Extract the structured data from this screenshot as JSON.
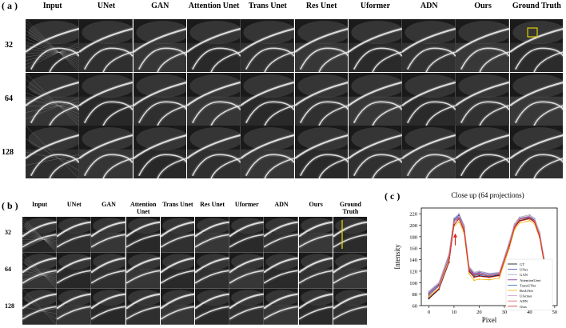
{
  "panel_a": {
    "label": "( a )",
    "columns": [
      "Input",
      "UNet",
      "GAN",
      "Attention Unet",
      "Trans Unet",
      "Res Unet",
      "Uformer",
      "ADN",
      "Ours",
      "Ground Truth"
    ],
    "rows": [
      "32",
      "64",
      "128"
    ],
    "roi_color": "#e0d000"
  },
  "panel_b": {
    "label": "( b )",
    "columns": [
      "Input",
      "UNet",
      "GAN",
      "Attention Unet",
      "Trans Unet",
      "Res Unet",
      "Uformer",
      "ADN",
      "Ours",
      "Ground Truth"
    ],
    "rows": [
      "32",
      "64",
      "128"
    ],
    "line_color": "#e0d000"
  },
  "panel_c": {
    "label": "( c )"
  },
  "chart_data": {
    "type": "line",
    "title": "Close up (64 projections)",
    "xlabel": "Pixel",
    "ylabel": "Intensity",
    "xlim": [
      -3,
      51
    ],
    "ylim": [
      60,
      230
    ],
    "xticks": [
      0,
      10,
      20,
      30,
      40,
      50
    ],
    "yticks": [
      60,
      80,
      100,
      120,
      140,
      160,
      180,
      200,
      220
    ],
    "legend_position": "right",
    "x": [
      0,
      4,
      8,
      10,
      12,
      14,
      16,
      18,
      20,
      24,
      28,
      32,
      34,
      36,
      40,
      42,
      44,
      46,
      48
    ],
    "series": [
      {
        "name": "GT",
        "color": "#000000",
        "values": [
          72,
          88,
          135,
          200,
          212,
          190,
          120,
          110,
          112,
          110,
          113,
          165,
          196,
          208,
          212,
          206,
          180,
          130,
          112
        ]
      },
      {
        "name": "UNet",
        "color": "#3b4cc0",
        "values": [
          82,
          98,
          148,
          210,
          218,
          198,
          125,
          115,
          118,
          114,
          116,
          170,
          200,
          212,
          216,
          210,
          186,
          136,
          116
        ]
      },
      {
        "name": "GAN",
        "color": "#9aa6b8",
        "values": [
          85,
          100,
          150,
          212,
          220,
          200,
          128,
          118,
          120,
          116,
          118,
          172,
          202,
          214,
          218,
          212,
          188,
          138,
          118
        ]
      },
      {
        "name": "AttentionUnet",
        "color": "#7b2d8e",
        "values": [
          80,
          96,
          145,
          208,
          216,
          196,
          124,
          114,
          116,
          112,
          115,
          168,
          199,
          211,
          215,
          209,
          185,
          135,
          115
        ]
      },
      {
        "name": "TransUNet",
        "color": "#1f6fb4",
        "values": [
          78,
          94,
          142,
          205,
          214,
          194,
          122,
          112,
          114,
          111,
          114,
          167,
          198,
          210,
          214,
          208,
          184,
          134,
          114
        ]
      },
      {
        "name": "ResUNet",
        "color": "#f0b400",
        "values": [
          76,
          90,
          138,
          198,
          206,
          186,
          115,
          104,
          106,
          105,
          108,
          160,
          192,
          204,
          208,
          202,
          178,
          128,
          108
        ]
      },
      {
        "name": "Uformer",
        "color": "#c8a0c8",
        "values": [
          84,
          99,
          146,
          207,
          215,
          197,
          126,
          117,
          119,
          115,
          117,
          169,
          200,
          212,
          216,
          210,
          186,
          137,
          117
        ]
      },
      {
        "name": "ADN",
        "color": "#e85a5a",
        "values": [
          80,
          95,
          144,
          206,
          212,
          195,
          123,
          113,
          115,
          112,
          115,
          166,
          198,
          210,
          213,
          207,
          183,
          134,
          114
        ]
      },
      {
        "name": "Ours",
        "color": "#d62728",
        "values": [
          74,
          89,
          136,
          201,
          211,
          190,
          119,
          109,
          111,
          109,
          112,
          164,
          195,
          207,
          211,
          205,
          180,
          130,
          111
        ]
      }
    ],
    "arrow_color": "#e02020"
  }
}
